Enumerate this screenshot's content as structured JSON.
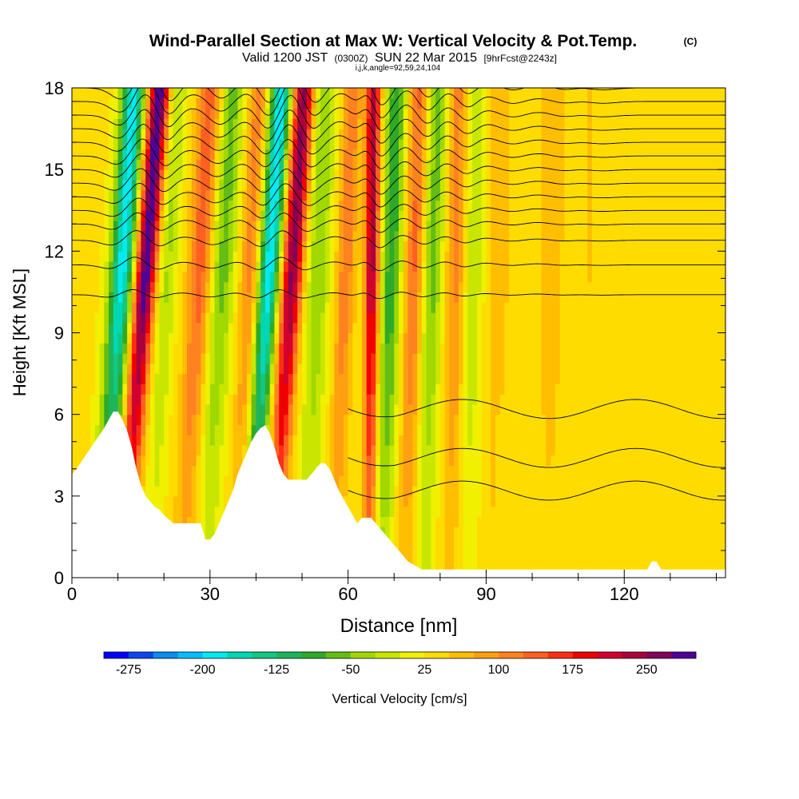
{
  "chart_data": {
    "type": "heatmap",
    "title": "Wind-Parallel Section at Max W: Vertical Velocity & Pot.Temp.",
    "copyright_mark": "(C)",
    "subtitle_valid": "Valid 1200 JST",
    "subtitle_utc": "(0300Z)",
    "subtitle_date": "SUN 22 Mar 2015",
    "subtitle_forecast": "[9hrFcst@2243z]",
    "subtitle_indices": "i,j,k,angle=92,59,24,104",
    "xlabel": "Distance [nm]",
    "ylabel": "Height [Kft MSL]",
    "xlim": [
      0,
      142
    ],
    "ylim": [
      0,
      18
    ],
    "x_ticks": [
      0,
      30,
      60,
      90,
      120
    ],
    "x_tick_labels": [
      "0",
      "30",
      "60",
      "90",
      "120"
    ],
    "y_ticks": [
      0,
      3,
      6,
      9,
      12,
      15,
      18
    ],
    "y_tick_labels": [
      "0",
      "3",
      "6",
      "9",
      "12",
      "15",
      "18"
    ],
    "colorbar": {
      "label": "Vertical Velocity [cm/s]",
      "min": -300,
      "max": 300,
      "step": 25,
      "tick_values": [
        -275,
        -200,
        -125,
        -50,
        25,
        100,
        175,
        250
      ],
      "tick_labels": [
        "-275",
        "-200",
        "-125",
        "-50",
        "25",
        "100",
        "175",
        "250"
      ],
      "colors": [
        "#0000ff",
        "#0a46f0",
        "#0a8cf0",
        "#00beff",
        "#00eaf0",
        "#00d7b4",
        "#12c882",
        "#1eb45a",
        "#2daa28",
        "#64bd14",
        "#a0d800",
        "#c8e600",
        "#f0f000",
        "#ffdc00",
        "#ffbe00",
        "#ffa010",
        "#ff8220",
        "#ff6020",
        "#ff2d14",
        "#f00000",
        "#d2002d",
        "#aa003c",
        "#82005a",
        "#500096"
      ]
    },
    "terrain_profile": {
      "x": [
        0,
        1,
        3,
        5,
        7,
        9,
        10,
        11,
        12,
        13,
        14,
        15,
        16,
        17,
        18,
        19,
        20,
        22,
        25,
        28,
        29,
        30,
        31,
        32,
        33,
        35,
        36,
        37,
        38,
        39,
        40,
        41,
        42,
        43,
        44,
        45,
        46,
        47,
        48,
        49,
        50,
        51,
        52,
        53,
        54,
        55,
        56,
        57,
        58,
        59,
        60,
        61,
        62,
        63,
        64,
        65,
        66,
        67,
        68,
        69,
        70,
        71,
        72,
        73,
        74,
        75,
        76,
        78,
        120,
        122,
        125,
        126,
        127,
        128,
        130,
        142
      ],
      "z_kft": [
        3.8,
        4.0,
        4.5,
        5.0,
        5.5,
        6.1,
        6.1,
        5.8,
        5.4,
        4.8,
        4.0,
        3.4,
        3.0,
        2.8,
        2.6,
        2.5,
        2.3,
        2.0,
        2.0,
        2.0,
        1.4,
        1.4,
        1.6,
        2.0,
        2.4,
        3.2,
        3.8,
        4.2,
        4.6,
        5.0,
        5.3,
        5.5,
        5.6,
        5.3,
        4.8,
        4.2,
        3.8,
        3.6,
        3.6,
        3.6,
        3.6,
        3.6,
        3.8,
        4.0,
        4.2,
        4.2,
        4.0,
        3.6,
        3.2,
        2.9,
        2.6,
        2.3,
        2.0,
        2.2,
        2.2,
        2.2,
        2.0,
        1.8,
        1.6,
        1.4,
        1.2,
        1.0,
        0.8,
        0.6,
        0.5,
        0.4,
        0.3,
        0.3,
        0.3,
        0.3,
        0.3,
        0.6,
        0.6,
        0.3,
        0.3,
        0.3
      ]
    },
    "velocity_bands": [
      {
        "x": 10,
        "tilt": 3.5,
        "w": 2.5,
        "amp": -220
      },
      {
        "x": 15,
        "tilt": 4.0,
        "w": 2.2,
        "amp": 270
      },
      {
        "x": 20,
        "tilt": 3.0,
        "w": 2.0,
        "amp": -60
      },
      {
        "x": 27,
        "tilt": 3.0,
        "w": 2.5,
        "amp": 110
      },
      {
        "x": 32,
        "tilt": 3.0,
        "w": 2.5,
        "amp": -90
      },
      {
        "x": 38,
        "tilt": 2.5,
        "w": 2.0,
        "amp": 80
      },
      {
        "x": 42,
        "tilt": 3.5,
        "w": 2.2,
        "amp": -230
      },
      {
        "x": 47,
        "tilt": 3.5,
        "w": 2.2,
        "amp": 230
      },
      {
        "x": 53,
        "tilt": 2.0,
        "w": 2.5,
        "amp": -80
      },
      {
        "x": 59,
        "tilt": 2.0,
        "w": 2.0,
        "amp": 90
      },
      {
        "x": 65,
        "tilt": 0.5,
        "w": 1.5,
        "amp": 210
      },
      {
        "x": 69,
        "tilt": 1.5,
        "w": 2.0,
        "amp": -130
      },
      {
        "x": 74,
        "tilt": 1.5,
        "w": 2.0,
        "amp": 100
      },
      {
        "x": 78,
        "tilt": 1.5,
        "w": 2.2,
        "amp": -90
      },
      {
        "x": 83,
        "tilt": 1.0,
        "w": 2.0,
        "amp": 80
      },
      {
        "x": 87,
        "tilt": 1.0,
        "w": 2.0,
        "amp": -50
      },
      {
        "x": 93,
        "tilt": 0.5,
        "w": 2.5,
        "amp": 50
      },
      {
        "x": 104,
        "tilt": 0.5,
        "w": 3.0,
        "amp": 60
      },
      {
        "x": 112,
        "tilt": 0.3,
        "w": 3.0,
        "amp": 35
      }
    ],
    "theta_contours": {
      "base_levels_kft": [
        10.4,
        11.5,
        12.4,
        13.0,
        13.5,
        14.0,
        14.5,
        15.0,
        15.5,
        16.0,
        16.5,
        17.0,
        17.5,
        18.0
      ],
      "low_levels_kft": [
        6.2,
        4.4,
        3.2
      ]
    }
  }
}
